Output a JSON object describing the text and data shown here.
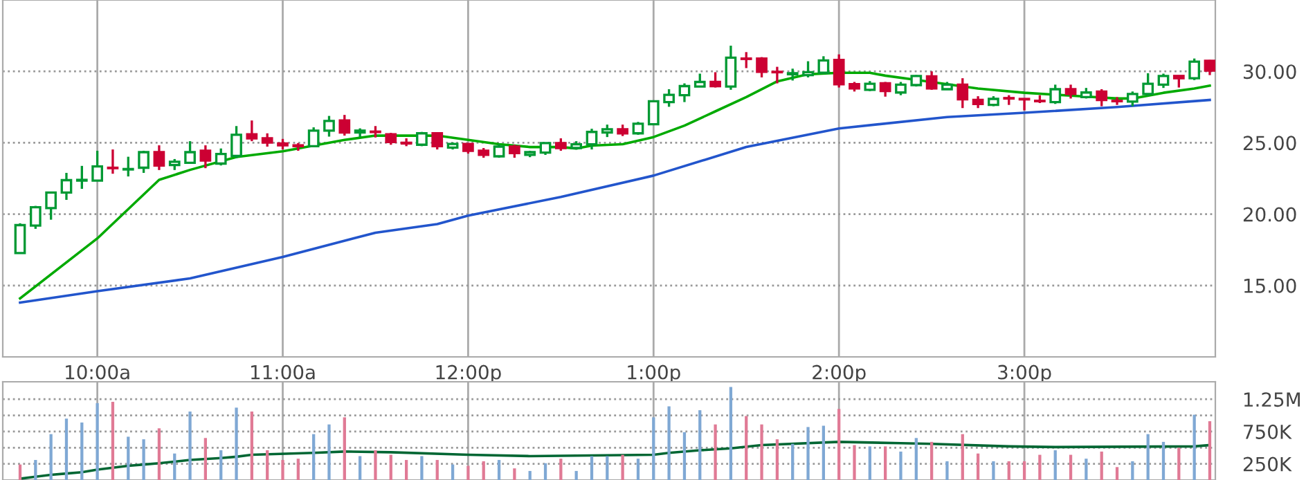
{
  "chart_data": [
    {
      "type": "candlestick",
      "x": [
        9.5833,
        9.6667,
        9.75,
        9.8333,
        9.9167,
        10,
        10.0833,
        10.1667,
        10.25,
        10.3333,
        10.4167,
        10.5,
        10.5833,
        10.6667,
        10.75,
        10.8333,
        10.9167,
        11,
        11.0833,
        11.1667,
        11.25,
        11.3333,
        11.4167,
        11.5,
        11.5833,
        11.6667,
        11.75,
        11.8333,
        11.9167,
        12,
        12.0833,
        12.1667,
        12.25,
        12.3333,
        12.4167,
        12.5,
        12.5833,
        12.6667,
        12.75,
        12.8333,
        12.9167,
        13,
        13.0833,
        13.1667,
        13.25,
        13.3333,
        13.4167,
        13.5,
        13.5833,
        13.6667,
        13.75,
        13.8333,
        13.9167,
        14,
        14.0833,
        14.1667,
        14.25,
        14.3333,
        14.4167,
        14.5,
        14.5833,
        14.6667,
        14.75,
        14.8333,
        14.9167,
        15,
        15.0833,
        15.1667,
        15.25,
        15.3333,
        15.4167,
        15.5,
        15.5833,
        15.6667,
        15.75,
        15.8333,
        15.9167,
        16
      ],
      "ohlc": [
        [
          17.27,
          19.36,
          17.27,
          19.23
        ],
        [
          19.2,
          20.58,
          18.97,
          20.48
        ],
        [
          20.42,
          21.51,
          19.61,
          21.51
        ],
        [
          21.51,
          22.89,
          21.0,
          22.38
        ],
        [
          22.35,
          23.38,
          21.77,
          22.4
        ],
        [
          22.35,
          24.44,
          22.35,
          23.34
        ],
        [
          23.25,
          24.53,
          22.83,
          23.22
        ],
        [
          23.13,
          24.02,
          22.64,
          23.16
        ],
        [
          23.25,
          24.44,
          22.89,
          24.34
        ],
        [
          24.34,
          24.82,
          23.09,
          23.41
        ],
        [
          23.44,
          23.86,
          23.09,
          23.67
        ],
        [
          23.6,
          25.11,
          23.6,
          24.34
        ],
        [
          24.44,
          24.82,
          23.22,
          23.76
        ],
        [
          23.54,
          24.6,
          23.41,
          24.21
        ],
        [
          24.08,
          26.17,
          23.92,
          25.56
        ],
        [
          25.59,
          26.56,
          25.11,
          25.31
        ],
        [
          25.31,
          25.66,
          24.73,
          25.02
        ],
        [
          24.95,
          25.27,
          24.53,
          24.82
        ],
        [
          24.82,
          24.98,
          24.44,
          24.76
        ],
        [
          24.76,
          26.08,
          24.76,
          25.85
        ],
        [
          25.85,
          26.88,
          25.43,
          26.53
        ],
        [
          26.56,
          26.95,
          25.5,
          25.72
        ],
        [
          25.72,
          26.01,
          25.4,
          25.85
        ],
        [
          25.78,
          26.17,
          25.37,
          25.75
        ],
        [
          25.59,
          25.69,
          24.86,
          25.05
        ],
        [
          25.0,
          25.31,
          24.76,
          24.95
        ],
        [
          24.86,
          25.76,
          24.76,
          25.66
        ],
        [
          25.66,
          25.66,
          24.53,
          24.76
        ],
        [
          24.66,
          25.02,
          24.53,
          24.92
        ],
        [
          24.92,
          24.92,
          24.24,
          24.44
        ],
        [
          24.44,
          24.63,
          23.95,
          24.15
        ],
        [
          24.05,
          24.92,
          23.95,
          24.73
        ],
        [
          24.73,
          24.86,
          23.95,
          24.28
        ],
        [
          24.15,
          24.44,
          23.99,
          24.34
        ],
        [
          24.31,
          24.98,
          24.15,
          24.98
        ],
        [
          24.98,
          25.31,
          24.44,
          24.63
        ],
        [
          24.63,
          25.11,
          24.53,
          24.89
        ],
        [
          24.89,
          25.98,
          24.53,
          25.76
        ],
        [
          25.72,
          26.27,
          25.4,
          25.95
        ],
        [
          25.95,
          26.27,
          25.47,
          25.66
        ],
        [
          25.66,
          26.46,
          25.56,
          26.33
        ],
        [
          26.3,
          27.91,
          26.3,
          27.91
        ],
        [
          27.85,
          28.75,
          27.52,
          28.36
        ],
        [
          28.33,
          29.16,
          27.85,
          28.97
        ],
        [
          28.94,
          29.84,
          28.94,
          29.26
        ],
        [
          29.26,
          29.94,
          28.87,
          28.97
        ],
        [
          28.94,
          31.8,
          28.71,
          30.96
        ],
        [
          30.9,
          31.35,
          30.23,
          30.87
        ],
        [
          30.9,
          31.0,
          29.58,
          29.97
        ],
        [
          29.97,
          30.32,
          29.16,
          29.94
        ],
        [
          29.8,
          30.19,
          29.36,
          29.87
        ],
        [
          29.74,
          30.71,
          29.58,
          29.94
        ],
        [
          29.9,
          31.06,
          29.9,
          30.77
        ],
        [
          30.8,
          31.19,
          28.87,
          29.1
        ],
        [
          29.1,
          29.26,
          28.59,
          28.81
        ],
        [
          28.71,
          29.32,
          28.62,
          29.13
        ],
        [
          29.16,
          29.26,
          28.23,
          28.62
        ],
        [
          28.52,
          29.26,
          28.33,
          29.07
        ],
        [
          29.04,
          29.74,
          28.94,
          29.68
        ],
        [
          29.65,
          30.0,
          28.71,
          28.81
        ],
        [
          28.75,
          29.26,
          28.75,
          29.07
        ],
        [
          29.07,
          29.52,
          27.43,
          28.04
        ],
        [
          28.0,
          28.26,
          27.43,
          27.72
        ],
        [
          27.65,
          28.26,
          27.56,
          28.07
        ],
        [
          28.13,
          28.33,
          27.65,
          28.1
        ],
        [
          28.07,
          28.07,
          27.27,
          28.04
        ],
        [
          27.94,
          28.33,
          27.78,
          27.91
        ],
        [
          27.85,
          29.07,
          27.72,
          28.75
        ],
        [
          28.75,
          29.07,
          28.1,
          28.42
        ],
        [
          28.2,
          28.84,
          28.1,
          28.52
        ],
        [
          28.59,
          28.75,
          27.56,
          28.0
        ],
        [
          27.94,
          28.2,
          27.65,
          27.91
        ],
        [
          27.88,
          28.59,
          27.56,
          28.42
        ],
        [
          28.42,
          29.87,
          28.29,
          29.13
        ],
        [
          29.07,
          29.84,
          28.84,
          29.68
        ],
        [
          29.68,
          29.68,
          28.87,
          29.52
        ],
        [
          29.52,
          30.9,
          29.39,
          30.68
        ],
        [
          30.74,
          30.8,
          29.74,
          30.06
        ]
      ],
      "colors": [
        "#009933",
        "#009933",
        "#009933",
        "#009933",
        "#009933",
        "#009933",
        "#cc0033",
        "#009933",
        "#009933",
        "#cc0033",
        "#009933",
        "#009933",
        "#cc0033",
        "#009933",
        "#009933",
        "#cc0033",
        "#cc0033",
        "#cc0033",
        "#cc0033",
        "#009933",
        "#009933",
        "#cc0033",
        "#009933",
        "#cc0033",
        "#cc0033",
        "#cc0033",
        "#009933",
        "#cc0033",
        "#009933",
        "#cc0033",
        "#cc0033",
        "#009933",
        "#cc0033",
        "#009933",
        "#009933",
        "#cc0033",
        "#009933",
        "#009933",
        "#009933",
        "#cc0033",
        "#009933",
        "#009933",
        "#009933",
        "#009933",
        "#009933",
        "#cc0033",
        "#009933",
        "#cc0033",
        "#cc0033",
        "#cc0033",
        "#009933",
        "#009933",
        "#009933",
        "#cc0033",
        "#cc0033",
        "#009933",
        "#cc0033",
        "#009933",
        "#009933",
        "#cc0033",
        "#009933",
        "#cc0033",
        "#cc0033",
        "#009933",
        "#cc0033",
        "#cc0033",
        "#cc0033",
        "#009933",
        "#cc0033",
        "#009933",
        "#cc0033",
        "#cc0033",
        "#009933",
        "#009933",
        "#009933",
        "#cc0033",
        "#009933",
        "#cc0033"
      ],
      "xlim": [
        9.49,
        16.03
      ],
      "xticks": [
        {
          "value": 10,
          "label": "10:00a"
        },
        {
          "value": 11,
          "label": "11:00a"
        },
        {
          "value": 12,
          "label": "12:00p"
        },
        {
          "value": 13,
          "label": "1:00p"
        },
        {
          "value": 14,
          "label": "2:00p"
        },
        {
          "value": 15,
          "label": "3:00p"
        }
      ],
      "ylim": [
        10,
        35
      ],
      "yticks": [
        {
          "value": 15,
          "label": "15.00"
        },
        {
          "value": 20,
          "label": "20.00"
        },
        {
          "value": 25,
          "label": "25.00"
        },
        {
          "value": 30,
          "label": "30.00"
        }
      ],
      "grid": true,
      "series": [
        {
          "type": "line",
          "color": "#00aa00",
          "x": [
            9.5833,
            10,
            10.3333,
            10.5,
            10.75,
            11,
            11.1667,
            11.3333,
            11.5,
            11.8333,
            12,
            12.1667,
            12.3333,
            12.5,
            12.5833,
            12.6667,
            12.8333,
            13,
            13.1667,
            13.3333,
            13.5,
            13.6667,
            13.8333,
            14,
            14.1667,
            14.25,
            14.4167,
            14.5833,
            14.75,
            15,
            15.25,
            15.5,
            15.5833,
            15.75,
            15.9167,
            16
          ],
          "values": [
            14.1,
            18.3,
            22.4,
            23.1,
            24.0,
            24.4,
            24.8,
            25.2,
            25.5,
            25.5,
            25.2,
            24.9,
            24.7,
            24.7,
            24.6,
            24.8,
            24.9,
            25.4,
            26.2,
            27.2,
            28.2,
            29.3,
            29.8,
            29.9,
            29.9,
            29.7,
            29.4,
            29.1,
            28.8,
            28.5,
            28.3,
            28.1,
            28.1,
            28.5,
            28.8,
            29.0
          ]
        },
        {
          "type": "line",
          "color": "#2255cc",
          "x": [
            9.5833,
            10,
            10.5,
            11,
            11.5,
            11.8333,
            12,
            12.5,
            13,
            13.5,
            14,
            14.5833,
            15,
            15.5,
            16
          ],
          "values": [
            13.8,
            14.6,
            15.5,
            17.0,
            18.7,
            19.3,
            19.9,
            21.2,
            22.7,
            24.7,
            26.0,
            26.8,
            27.1,
            27.5,
            28.0
          ]
        }
      ]
    },
    {
      "type": "bar",
      "x": [
        9.5833,
        9.6667,
        9.75,
        9.8333,
        9.9167,
        10,
        10.0833,
        10.1667,
        10.25,
        10.3333,
        10.4167,
        10.5,
        10.5833,
        10.6667,
        10.75,
        10.8333,
        10.9167,
        11,
        11.0833,
        11.1667,
        11.25,
        11.3333,
        11.4167,
        11.5,
        11.5833,
        11.6667,
        11.75,
        11.8333,
        11.9167,
        12,
        12.0833,
        12.1667,
        12.25,
        12.3333,
        12.4167,
        12.5,
        12.5833,
        12.6667,
        12.75,
        12.8333,
        12.9167,
        13,
        13.0833,
        13.1667,
        13.25,
        13.3333,
        13.4167,
        13.5,
        13.5833,
        13.6667,
        13.75,
        13.8333,
        13.9167,
        14,
        14.0833,
        14.1667,
        14.25,
        14.3333,
        14.4167,
        14.5,
        14.5833,
        14.6667,
        14.75,
        14.8333,
        14.9167,
        15,
        15.0833,
        15.1667,
        15.25,
        15.3333,
        15.4167,
        15.5,
        15.5833,
        15.6667,
        15.75,
        15.8333,
        15.9167,
        16
      ],
      "values": [
        240000,
        310000,
        710000,
        950000,
        890000,
        1190000,
        1210000,
        670000,
        630000,
        800000,
        410000,
        1060000,
        650000,
        460000,
        1120000,
        1060000,
        460000,
        310000,
        330000,
        710000,
        860000,
        970000,
        370000,
        460000,
        390000,
        310000,
        370000,
        310000,
        240000,
        220000,
        290000,
        310000,
        180000,
        140000,
        260000,
        330000,
        140000,
        370000,
        370000,
        390000,
        330000,
        970000,
        1140000,
        740000,
        1080000,
        860000,
        1440000,
        990000,
        860000,
        630000,
        560000,
        820000,
        840000,
        1100000,
        540000,
        520000,
        520000,
        440000,
        650000,
        590000,
        290000,
        710000,
        410000,
        290000,
        290000,
        290000,
        390000,
        460000,
        390000,
        330000,
        440000,
        200000,
        290000,
        710000,
        590000,
        500000,
        1010000,
        910000
      ],
      "colors": [
        "#e07a95",
        "#7fa8d4",
        "#7fa8d4",
        "#7fa8d4",
        "#7fa8d4",
        "#7fa8d4",
        "#e07a95",
        "#7fa8d4",
        "#7fa8d4",
        "#e07a95",
        "#7fa8d4",
        "#7fa8d4",
        "#e07a95",
        "#7fa8d4",
        "#7fa8d4",
        "#e07a95",
        "#e07a95",
        "#e07a95",
        "#e07a95",
        "#7fa8d4",
        "#7fa8d4",
        "#e07a95",
        "#7fa8d4",
        "#e07a95",
        "#e07a95",
        "#e07a95",
        "#7fa8d4",
        "#e07a95",
        "#7fa8d4",
        "#e07a95",
        "#e07a95",
        "#7fa8d4",
        "#e07a95",
        "#7fa8d4",
        "#7fa8d4",
        "#e07a95",
        "#7fa8d4",
        "#7fa8d4",
        "#7fa8d4",
        "#e07a95",
        "#7fa8d4",
        "#7fa8d4",
        "#7fa8d4",
        "#7fa8d4",
        "#7fa8d4",
        "#e07a95",
        "#7fa8d4",
        "#e07a95",
        "#e07a95",
        "#e07a95",
        "#7fa8d4",
        "#7fa8d4",
        "#7fa8d4",
        "#e07a95",
        "#e07a95",
        "#7fa8d4",
        "#e07a95",
        "#7fa8d4",
        "#7fa8d4",
        "#e07a95",
        "#7fa8d4",
        "#e07a95",
        "#e07a95",
        "#7fa8d4",
        "#e07a95",
        "#e07a95",
        "#e07a95",
        "#7fa8d4",
        "#e07a95",
        "#7fa8d4",
        "#e07a95",
        "#e07a95",
        "#7fa8d4",
        "#7fa8d4",
        "#7fa8d4",
        "#e07a95",
        "#7fa8d4",
        "#e07a95"
      ],
      "xlim": [
        9.49,
        16.03
      ],
      "xticks": [
        {
          "value": 10,
          "label": null
        },
        {
          "value": 11,
          "label": null
        },
        {
          "value": 12,
          "label": null
        },
        {
          "value": 13,
          "label": null
        },
        {
          "value": 14,
          "label": null
        },
        {
          "value": 15,
          "label": null
        }
      ],
      "ylim": [
        0,
        1520000
      ],
      "yticks": [
        {
          "value": 250000,
          "label": "250K"
        },
        {
          "value": 500000,
          "label": null
        },
        {
          "value": 750000,
          "label": "750K"
        },
        {
          "value": 1000000,
          "label": null
        },
        {
          "value": 1250000,
          "label": "1.25M"
        }
      ],
      "grid": true,
      "tick_labels": "y",
      "series": [
        {
          "type": "line",
          "color": "#006633",
          "x": [
            9.5833,
            9.6667,
            9.75,
            9.8333,
            9.9167,
            10,
            10.0833,
            10.1667,
            10.25,
            10.3333,
            10.5,
            10.6667,
            10.75,
            10.8333,
            11.1667,
            11.3333,
            11.5833,
            12,
            12.3333,
            13,
            13.0833,
            13.25,
            13.4167,
            13.5833,
            14,
            14.3333,
            14.5,
            14.9167,
            15.1667,
            15.9167,
            16
          ],
          "values": [
            20000,
            50000,
            80000,
            100000,
            120000,
            160000,
            190000,
            220000,
            240000,
            260000,
            310000,
            340000,
            360000,
            390000,
            420000,
            440000,
            430000,
            390000,
            370000,
            390000,
            420000,
            460000,
            490000,
            540000,
            590000,
            570000,
            560000,
            520000,
            510000,
            520000,
            540000
          ]
        }
      ]
    }
  ]
}
